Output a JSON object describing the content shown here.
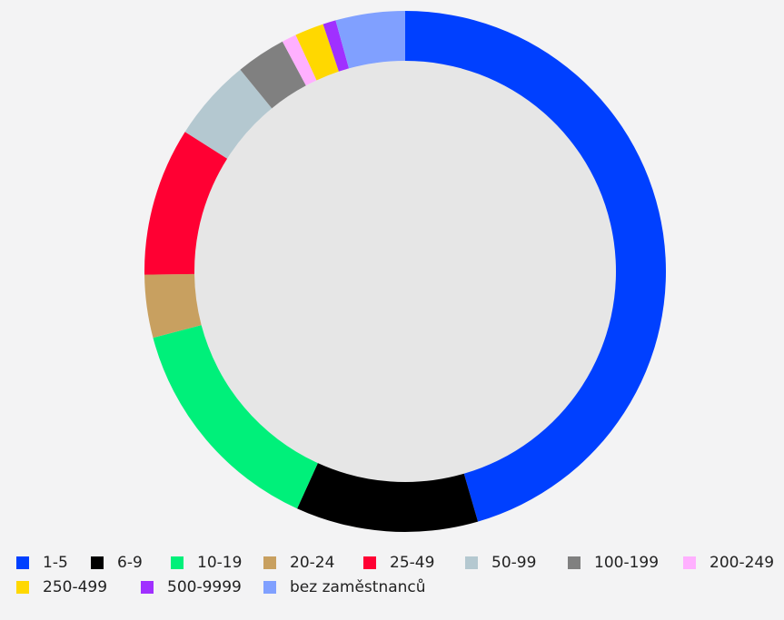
{
  "chart_data": {
    "type": "donut",
    "categories": [
      "1-5",
      "6-9",
      "10-19",
      "20-24",
      "25-49",
      "50-99",
      "100-199",
      "200-249",
      "250-499",
      "500-9999",
      "bez zaměstnanců"
    ],
    "values": [
      45.5,
      11.3,
      14.1,
      3.9,
      9.2,
      5.1,
      3.1,
      0.9,
      1.8,
      0.8,
      4.3
    ],
    "colors": [
      "#0040ff",
      "#000000",
      "#00f07a",
      "#c8a060",
      "#ff0033",
      "#b4c8d0",
      "#808080",
      "#ffb0ff",
      "#ffd800",
      "#a030ff",
      "#80a0ff"
    ],
    "legend": "bottom"
  }
}
